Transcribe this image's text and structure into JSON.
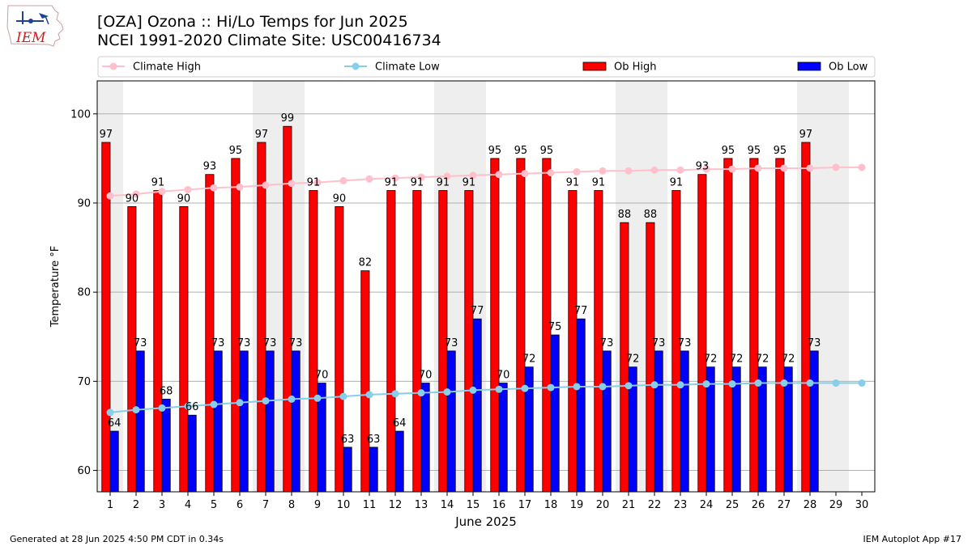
{
  "header": {
    "title_line1": "[OZA] Ozona :: Hi/Lo Temps for Jun 2025",
    "title_line2": "NCEI 1991-2020 Climate Site: USC00416734",
    "logo_text": "IEM"
  },
  "footer": {
    "generated": "Generated at 28 Jun 2025 4:50 PM CDT in 0.34s",
    "app": "IEM Autoplot App #17"
  },
  "colors": {
    "climate_high": "#ffc0cb",
    "climate_low": "#87ceeb",
    "ob_high": "#ff0000",
    "ob_low": "#0000ff",
    "weekend_shade": "#eeeeee",
    "grid": "#b0b0b0"
  },
  "chart_data": {
    "type": "bar",
    "xlabel": "June 2025",
    "ylabel": "Temperature °F",
    "ylim": [
      57.6,
      103.7
    ],
    "yticks": [
      60,
      70,
      80,
      90,
      100
    ],
    "xlim": [
      0.5,
      30.5
    ],
    "grid": "horizontal",
    "legend_placement": "top",
    "categories": [
      "1",
      "2",
      "3",
      "4",
      "5",
      "6",
      "7",
      "8",
      "9",
      "10",
      "11",
      "12",
      "13",
      "14",
      "15",
      "16",
      "17",
      "18",
      "19",
      "20",
      "21",
      "22",
      "23",
      "24",
      "25",
      "26",
      "27",
      "28",
      "29",
      "30"
    ],
    "shaded_days": [
      1,
      7,
      8,
      14,
      15,
      21,
      22,
      28,
      29
    ],
    "series": [
      {
        "name": "Climate High",
        "kind": "line",
        "values": [
          90.8,
          91.0,
          91.3,
          91.5,
          91.7,
          91.8,
          92.0,
          92.2,
          92.3,
          92.5,
          92.7,
          92.8,
          92.9,
          93.0,
          93.1,
          93.2,
          93.3,
          93.4,
          93.5,
          93.6,
          93.6,
          93.7,
          93.7,
          93.8,
          93.8,
          93.9,
          93.9,
          93.9,
          94.0,
          94.0
        ]
      },
      {
        "name": "Climate Low",
        "kind": "line",
        "values": [
          66.5,
          66.8,
          67.0,
          67.2,
          67.4,
          67.6,
          67.8,
          68.0,
          68.1,
          68.3,
          68.5,
          68.6,
          68.7,
          68.8,
          69.0,
          69.1,
          69.2,
          69.3,
          69.4,
          69.4,
          69.5,
          69.6,
          69.6,
          69.7,
          69.7,
          69.8,
          69.8,
          69.8,
          69.8,
          69.8
        ]
      },
      {
        "name": "Ob High",
        "kind": "bar",
        "values": [
          96.8,
          89.6,
          91.4,
          89.6,
          93.2,
          95.0,
          96.8,
          98.6,
          91.4,
          89.6,
          82.4,
          91.4,
          91.4,
          91.4,
          91.4,
          95.0,
          95.0,
          95.0,
          91.4,
          91.4,
          87.8,
          87.8,
          91.4,
          93.2,
          95.0,
          95.0,
          95.0,
          96.8,
          null,
          null
        ],
        "labels": [
          "97",
          "90",
          "91",
          "90",
          "93",
          "95",
          "97",
          "99",
          "91",
          "90",
          "82",
          "91",
          "91",
          "91",
          "91",
          "95",
          "95",
          "95",
          "91",
          "91",
          "88",
          "88",
          "91",
          "93",
          "95",
          "95",
          "95",
          "97",
          "",
          ""
        ]
      },
      {
        "name": "Ob Low",
        "kind": "bar",
        "values": [
          64.4,
          73.4,
          68.0,
          66.2,
          73.4,
          73.4,
          73.4,
          73.4,
          69.8,
          62.6,
          62.6,
          64.4,
          69.8,
          73.4,
          77.0,
          69.8,
          71.6,
          75.2,
          77.0,
          73.4,
          71.6,
          73.4,
          73.4,
          71.6,
          71.6,
          71.6,
          71.6,
          73.4,
          null,
          null
        ],
        "labels": [
          "64",
          "73",
          "68",
          "66",
          "73",
          "73",
          "73",
          "73",
          "70",
          "63",
          "63",
          "64",
          "70",
          "73",
          "77",
          "70",
          "72",
          "75",
          "77",
          "73",
          "72",
          "73",
          "73",
          "72",
          "72",
          "72",
          "72",
          "73",
          "",
          ""
        ]
      }
    ]
  }
}
